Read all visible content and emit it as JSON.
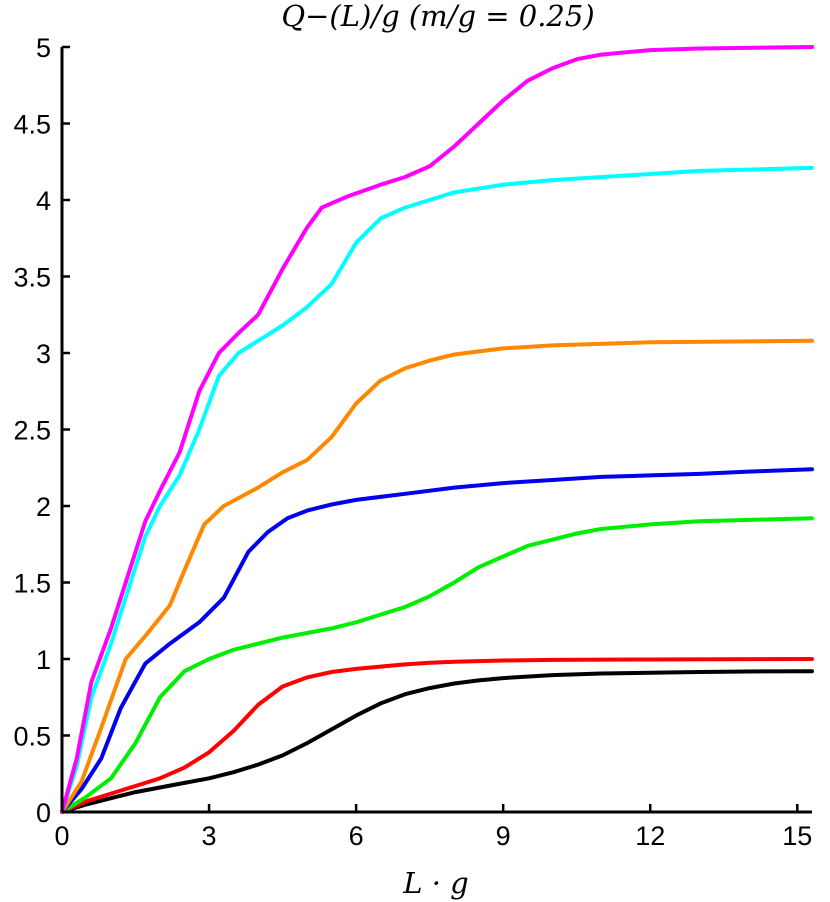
{
  "chart_data": {
    "type": "line",
    "title": "Q−(L)/g (m/g = 0.25)",
    "xlabel": "L · g",
    "ylabel": "",
    "xlim": [
      0,
      15.3
    ],
    "ylim": [
      0,
      5
    ],
    "xticks": [
      {
        "value": 0,
        "label": "0"
      },
      {
        "value": 3,
        "label": "3"
      },
      {
        "value": 6,
        "label": "6"
      },
      {
        "value": 9,
        "label": "9"
      },
      {
        "value": 12,
        "label": "12"
      },
      {
        "value": 15,
        "label": "15"
      }
    ],
    "yticks": [
      {
        "value": 0,
        "label": "0"
      },
      {
        "value": 0.5,
        "label": "0.5"
      },
      {
        "value": 1,
        "label": "1"
      },
      {
        "value": 1.5,
        "label": "1.5"
      },
      {
        "value": 2,
        "label": "2"
      },
      {
        "value": 2.5,
        "label": "2.5"
      },
      {
        "value": 3,
        "label": "3"
      },
      {
        "value": 3.5,
        "label": "3.5"
      },
      {
        "value": 4,
        "label": "4"
      },
      {
        "value": 4.5,
        "label": "4.5"
      },
      {
        "value": 5,
        "label": "5"
      }
    ],
    "grid": false,
    "series": [
      {
        "color": "#000000",
        "points": [
          [
            0,
            0
          ],
          [
            0.5,
            0.05
          ],
          [
            1,
            0.09
          ],
          [
            1.5,
            0.13
          ],
          [
            2,
            0.16
          ],
          [
            2.5,
            0.19
          ],
          [
            3,
            0.22
          ],
          [
            3.5,
            0.26
          ],
          [
            4,
            0.31
          ],
          [
            4.5,
            0.37
          ],
          [
            5,
            0.45
          ],
          [
            5.5,
            0.54
          ],
          [
            6,
            0.63
          ],
          [
            6.5,
            0.71
          ],
          [
            7,
            0.77
          ],
          [
            7.5,
            0.81
          ],
          [
            8,
            0.84
          ],
          [
            8.5,
            0.86
          ],
          [
            9,
            0.875
          ],
          [
            10,
            0.895
          ],
          [
            11,
            0.905
          ],
          [
            12,
            0.91
          ],
          [
            13,
            0.915
          ],
          [
            14,
            0.918
          ],
          [
            15.3,
            0.92
          ]
        ]
      },
      {
        "color": "#ff0000",
        "points": [
          [
            0,
            0
          ],
          [
            0.5,
            0.07
          ],
          [
            1,
            0.12
          ],
          [
            1.5,
            0.17
          ],
          [
            2,
            0.22
          ],
          [
            2.5,
            0.29
          ],
          [
            3,
            0.39
          ],
          [
            3.5,
            0.53
          ],
          [
            4,
            0.7
          ],
          [
            4.5,
            0.82
          ],
          [
            5,
            0.88
          ],
          [
            5.5,
            0.915
          ],
          [
            6,
            0.935
          ],
          [
            6.5,
            0.95
          ],
          [
            7,
            0.965
          ],
          [
            7.5,
            0.975
          ],
          [
            8,
            0.982
          ],
          [
            9,
            0.99
          ],
          [
            10,
            0.994
          ],
          [
            12,
            0.997
          ],
          [
            15.3,
            1.0
          ]
        ]
      },
      {
        "color": "#00ee00",
        "points": [
          [
            0,
            0
          ],
          [
            0.5,
            0.1
          ],
          [
            1,
            0.22
          ],
          [
            1.5,
            0.45
          ],
          [
            2,
            0.75
          ],
          [
            2.5,
            0.92
          ],
          [
            3,
            1.0
          ],
          [
            3.5,
            1.06
          ],
          [
            4,
            1.1
          ],
          [
            4.5,
            1.14
          ],
          [
            5,
            1.17
          ],
          [
            5.5,
            1.2
          ],
          [
            6,
            1.24
          ],
          [
            6.5,
            1.29
          ],
          [
            7,
            1.34
          ],
          [
            7.5,
            1.41
          ],
          [
            8,
            1.5
          ],
          [
            8.5,
            1.6
          ],
          [
            9,
            1.67
          ],
          [
            9.5,
            1.74
          ],
          [
            10,
            1.78
          ],
          [
            10.5,
            1.82
          ],
          [
            11,
            1.85
          ],
          [
            12,
            1.88
          ],
          [
            13,
            1.9
          ],
          [
            15.3,
            1.92
          ]
        ]
      },
      {
        "color": "#0000ee",
        "points": [
          [
            0,
            0
          ],
          [
            0.4,
            0.15
          ],
          [
            0.8,
            0.35
          ],
          [
            1.2,
            0.68
          ],
          [
            1.7,
            0.97
          ],
          [
            2.2,
            1.1
          ],
          [
            2.8,
            1.24
          ],
          [
            3.3,
            1.4
          ],
          [
            3.8,
            1.7
          ],
          [
            4.2,
            1.83
          ],
          [
            4.6,
            1.92
          ],
          [
            5,
            1.97
          ],
          [
            5.5,
            2.01
          ],
          [
            6,
            2.04
          ],
          [
            7,
            2.08
          ],
          [
            8,
            2.12
          ],
          [
            9,
            2.15
          ],
          [
            10,
            2.17
          ],
          [
            11,
            2.19
          ],
          [
            12,
            2.2
          ],
          [
            13,
            2.21
          ],
          [
            14,
            2.225
          ],
          [
            15.3,
            2.24
          ]
        ]
      },
      {
        "color": "#ff8800",
        "points": [
          [
            0,
            0
          ],
          [
            0.4,
            0.2
          ],
          [
            0.8,
            0.55
          ],
          [
            1.3,
            1.0
          ],
          [
            1.7,
            1.15
          ],
          [
            2.2,
            1.35
          ],
          [
            2.5,
            1.58
          ],
          [
            2.9,
            1.88
          ],
          [
            3.3,
            2.0
          ],
          [
            4,
            2.12
          ],
          [
            4.5,
            2.22
          ],
          [
            5,
            2.3
          ],
          [
            5.5,
            2.45
          ],
          [
            6,
            2.67
          ],
          [
            6.5,
            2.82
          ],
          [
            7,
            2.9
          ],
          [
            7.5,
            2.95
          ],
          [
            8,
            2.99
          ],
          [
            9,
            3.03
          ],
          [
            10,
            3.05
          ],
          [
            12,
            3.07
          ],
          [
            15.3,
            3.08
          ]
        ]
      },
      {
        "color": "#00ffff",
        "points": [
          [
            0,
            0
          ],
          [
            0.3,
            0.3
          ],
          [
            0.6,
            0.75
          ],
          [
            1,
            1.1
          ],
          [
            1.3,
            1.4
          ],
          [
            1.7,
            1.8
          ],
          [
            2,
            2.0
          ],
          [
            2.4,
            2.2
          ],
          [
            2.8,
            2.5
          ],
          [
            3.2,
            2.85
          ],
          [
            3.6,
            3.0
          ],
          [
            4,
            3.08
          ],
          [
            4.5,
            3.18
          ],
          [
            5,
            3.3
          ],
          [
            5.5,
            3.45
          ],
          [
            6,
            3.72
          ],
          [
            6.5,
            3.88
          ],
          [
            7,
            3.95
          ],
          [
            8,
            4.05
          ],
          [
            9,
            4.1
          ],
          [
            10,
            4.13
          ],
          [
            12,
            4.17
          ],
          [
            13,
            4.19
          ],
          [
            15.3,
            4.21
          ]
        ]
      },
      {
        "color": "#ff00ff",
        "points": [
          [
            0,
            0
          ],
          [
            0.3,
            0.35
          ],
          [
            0.6,
            0.85
          ],
          [
            1,
            1.2
          ],
          [
            1.3,
            1.5
          ],
          [
            1.7,
            1.9
          ],
          [
            2,
            2.1
          ],
          [
            2.4,
            2.35
          ],
          [
            2.8,
            2.75
          ],
          [
            3.2,
            3.0
          ],
          [
            3.6,
            3.13
          ],
          [
            4,
            3.25
          ],
          [
            4.5,
            3.55
          ],
          [
            5,
            3.82
          ],
          [
            5.3,
            3.95
          ],
          [
            5.8,
            4.02
          ],
          [
            6.5,
            4.1
          ],
          [
            7,
            4.15
          ],
          [
            7.5,
            4.22
          ],
          [
            8,
            4.35
          ],
          [
            8.5,
            4.5
          ],
          [
            9,
            4.65
          ],
          [
            9.5,
            4.78
          ],
          [
            10,
            4.86
          ],
          [
            10.5,
            4.92
          ],
          [
            11,
            4.95
          ],
          [
            12,
            4.98
          ],
          [
            13,
            4.99
          ],
          [
            15.3,
            5.0
          ]
        ]
      }
    ]
  }
}
